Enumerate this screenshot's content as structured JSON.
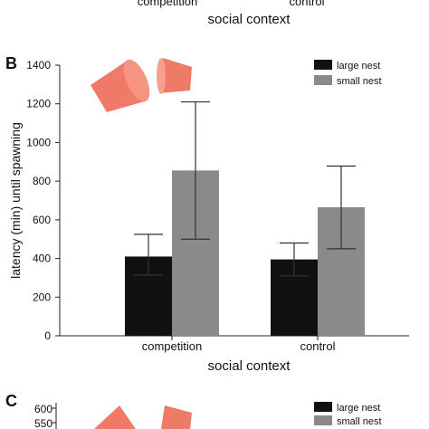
{
  "top_fragment": {
    "category_labels": [
      "competition",
      "control"
    ],
    "xlabel": "social context"
  },
  "panel_c": {
    "letter": "C",
    "yticks": [
      "600",
      "550"
    ],
    "legend": [
      "large nest",
      "small nest"
    ]
  },
  "chart_data": {
    "type": "bar",
    "panel_letter": "B",
    "categories": [
      "competition",
      "control"
    ],
    "xlabel": "social context",
    "ylabel": "latency (min) until spawning",
    "ylim": [
      0,
      1400
    ],
    "yticks": [
      0,
      200,
      400,
      600,
      800,
      1000,
      1200,
      1400
    ],
    "grid": false,
    "legend_position": "top-right",
    "series": [
      {
        "name": "large nest",
        "color": "#111111",
        "values": [
          410,
          395
        ],
        "err_low": [
          315,
          310
        ],
        "err_high": [
          525,
          480
        ]
      },
      {
        "name": "small nest",
        "color": "#8a8a8a",
        "values": [
          855,
          665
        ],
        "err_low": [
          500,
          450
        ],
        "err_high": [
          1210,
          878
        ]
      }
    ]
  }
}
